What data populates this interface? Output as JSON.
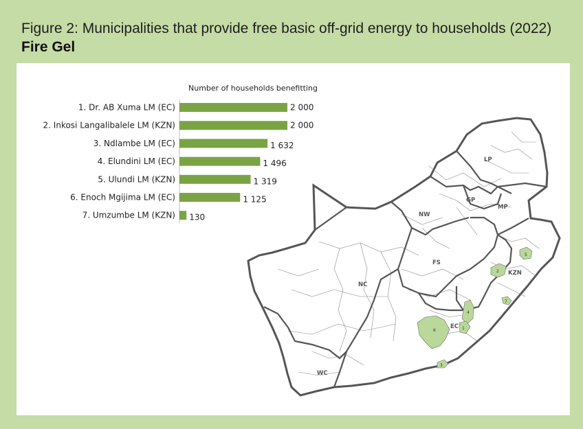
{
  "figure": {
    "title": "Figure 2: Municipalities that provide free basic off-grid energy to households (2022)",
    "subtitle": "Fire Gel"
  },
  "chart_data": {
    "type": "bar",
    "orientation": "horizontal",
    "title": "Number of households benefitting",
    "categories": [
      "1. Dr. AB Xuma LM (EC)",
      "2. Inkosi Langalibalele LM (KZN)",
      "3. Ndlambe LM (EC)",
      "4. Elundini LM (EC)",
      "5. Ulundi LM (KZN)",
      "6. Enoch Mgijima LM (EC)",
      "7. Umzumbe LM (KZN)"
    ],
    "values": [
      2000,
      2000,
      1632,
      1496,
      1319,
      1125,
      130
    ],
    "value_labels": [
      "2 000",
      "2 000",
      "1 632",
      "1 496",
      "1 319",
      "1 125",
      "130"
    ],
    "xlim": [
      0,
      2000
    ],
    "bar_color": "#7aa444",
    "grid": false,
    "legend": "none"
  },
  "map": {
    "provinces": [
      "LP",
      "GP",
      "MP",
      "NW",
      "FS",
      "KZN",
      "NC",
      "EC",
      "WC"
    ],
    "highlight_numbers": [
      "1",
      "2",
      "3",
      "4",
      "5",
      "6",
      "7"
    ],
    "highlight_color": "#b9d89a",
    "border_color": "#555555"
  }
}
